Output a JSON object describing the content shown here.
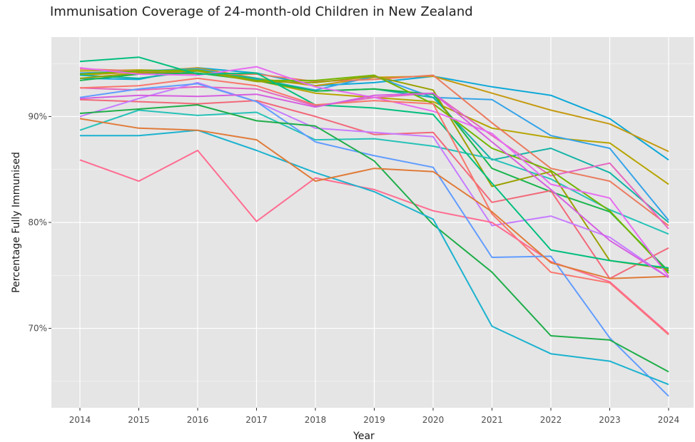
{
  "chart_data": {
    "type": "line",
    "title": "Immunisation Coverage of 24-month-old Children in New Zealand",
    "xlabel": "Year",
    "ylabel": "Percentage Fully Immunised",
    "x": [
      "2014",
      "2015",
      "2016",
      "2017",
      "2018",
      "2019",
      "2020",
      "2021",
      "2022",
      "2023",
      "2024"
    ],
    "ylim": [
      62.5,
      97.5
    ],
    "yticks": [
      70,
      80,
      90
    ],
    "ytick_labels": [
      "70%",
      "80%",
      "90%"
    ],
    "grid": true,
    "legend": "none",
    "background": "#e5e5e5",
    "gridline_color": "#ffffff",
    "series": [
      {
        "color": "#0ca8d8",
        "values": [
          93.6,
          93.5,
          94.6,
          94.1,
          92.9,
          93.2,
          93.8,
          92.8,
          92.0,
          89.8,
          85.9
        ]
      },
      {
        "color": "#c59a10",
        "values": [
          93.9,
          94.2,
          94.6,
          93.6,
          92.9,
          93.7,
          93.8,
          92.2,
          90.6,
          89.3,
          86.7
        ]
      },
      {
        "color": "#b6a400",
        "values": [
          94.3,
          94.4,
          94.3,
          93.4,
          92.2,
          91.8,
          91.4,
          88.9,
          88.0,
          87.5,
          83.6
        ]
      },
      {
        "color": "#34a3e8",
        "values": [
          94.1,
          94.3,
          94.5,
          93.5,
          92.5,
          93.8,
          91.8,
          91.6,
          88.2,
          87.0,
          80.2
        ]
      },
      {
        "color": "#12b3a6",
        "values": [
          93.9,
          93.6,
          94.3,
          93.6,
          92.4,
          92.6,
          91.8,
          85.9,
          87.0,
          84.7,
          80.0
        ]
      },
      {
        "color": "#ea7b5e",
        "values": [
          94.5,
          94.3,
          94.0,
          94.0,
          93.3,
          93.5,
          93.9,
          89.4,
          85.1,
          83.9,
          79.7
        ]
      },
      {
        "color": "#e566c0",
        "values": [
          92.7,
          92.5,
          92.8,
          92.6,
          91.0,
          91.8,
          92.2,
          88.2,
          84.4,
          85.6,
          79.4
        ]
      },
      {
        "color": "#19b54c",
        "values": [
          93.4,
          94.0,
          94.1,
          93.4,
          92.4,
          92.6,
          92.1,
          85.1,
          82.9,
          81.0,
          75.4
        ]
      },
      {
        "color": "#27c2b8",
        "values": [
          88.7,
          90.6,
          90.1,
          90.4,
          87.8,
          87.9,
          87.2,
          86.0,
          84.1,
          81.2,
          78.9
        ]
      },
      {
        "color": "#73b400",
        "values": [
          94.0,
          94.3,
          94.4,
          93.4,
          93.4,
          93.9,
          91.2,
          87.0,
          84.9,
          81.1,
          75.2
        ]
      },
      {
        "color": "#9aa000",
        "values": [
          93.6,
          94.1,
          94.3,
          93.3,
          93.2,
          93.8,
          92.5,
          83.4,
          84.8,
          76.4,
          75.6
        ]
      },
      {
        "color": "#f2697a",
        "values": [
          91.6,
          91.4,
          91.2,
          91.5,
          90.0,
          88.3,
          88.5,
          81.9,
          83.0,
          74.7,
          77.6
        ]
      },
      {
        "color": "#c77cff",
        "values": [
          90.0,
          91.7,
          93.2,
          91.4,
          88.9,
          88.5,
          88.1,
          79.7,
          80.6,
          78.6,
          74.8
        ]
      },
      {
        "color": "#e76bf3",
        "values": [
          94.6,
          94.0,
          93.9,
          94.7,
          92.8,
          91.8,
          90.5,
          88.4,
          83.6,
          82.3,
          74.9
        ]
      },
      {
        "color": "#00bf7d",
        "values": [
          95.2,
          95.6,
          94.0,
          94.1,
          91.1,
          90.8,
          90.2,
          83.7,
          77.4,
          76.4,
          75.7
        ]
      },
      {
        "color": "#f8766d",
        "values": [
          92.7,
          92.9,
          93.6,
          92.9,
          91.1,
          91.5,
          91.2,
          80.8,
          75.3,
          74.3,
          69.4
        ]
      },
      {
        "color": "#ff6c91",
        "values": [
          85.9,
          83.9,
          86.8,
          80.1,
          84.2,
          83.1,
          81.1,
          80.0,
          76.3,
          74.4,
          69.5
        ]
      },
      {
        "color": "#619cff",
        "values": [
          91.8,
          92.6,
          93.1,
          91.4,
          87.6,
          86.3,
          85.2,
          76.7,
          76.8,
          69.1,
          63.6
        ]
      },
      {
        "color": "#1fae4a",
        "values": [
          90.3,
          90.7,
          91.1,
          89.6,
          89.1,
          85.8,
          79.8,
          75.3,
          69.3,
          68.9,
          65.9
        ]
      },
      {
        "color": "#1bb2cf",
        "values": [
          88.2,
          88.2,
          88.7,
          86.8,
          84.7,
          82.9,
          80.3,
          70.2,
          67.6,
          66.9,
          64.7
        ]
      },
      {
        "color": "#e07b39",
        "values": [
          89.8,
          88.9,
          88.7,
          87.8,
          83.9,
          85.1,
          84.8,
          81.0,
          76.2,
          74.7,
          74.9
        ]
      },
      {
        "color": "#d65fe0",
        "values": [
          91.7,
          92.0,
          91.9,
          92.1,
          90.9,
          92.0,
          92.2,
          87.6,
          83.1,
          78.3,
          74.8
        ]
      }
    ]
  }
}
